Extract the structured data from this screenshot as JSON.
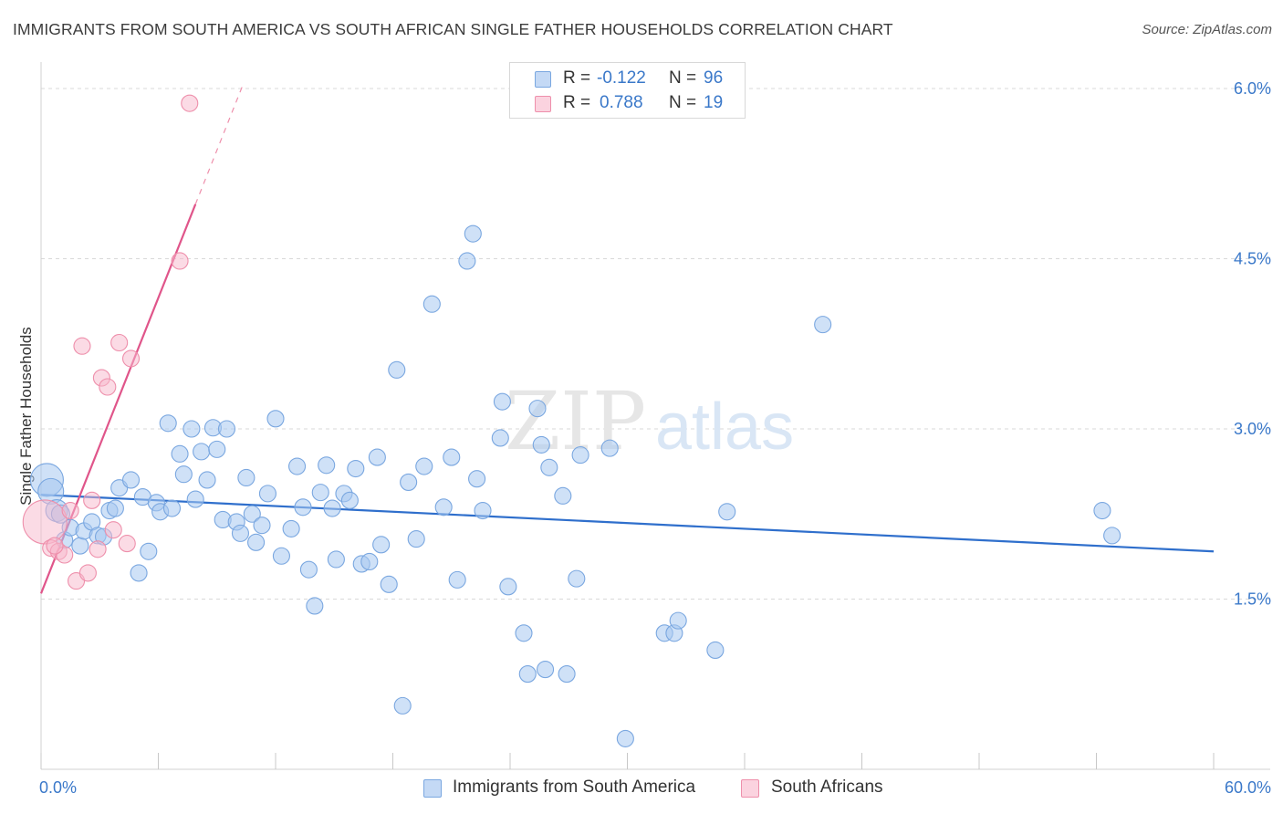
{
  "title": "IMMIGRANTS FROM SOUTH AMERICA VS SOUTH AFRICAN SINGLE FATHER HOUSEHOLDS CORRELATION CHART",
  "source": "Source: ZipAtlas.com",
  "watermark": {
    "zip": "ZIP",
    "atlas": "atlas"
  },
  "legend": {
    "r_label": "R =",
    "n_label": "N =",
    "rows": [
      {
        "r": "-0.122",
        "n": "96"
      },
      {
        "r": "0.788",
        "n": "19"
      }
    ]
  },
  "colors": {
    "blue_fill": "#a8c8f0",
    "blue_edge": "#7aa7e0",
    "blue_line": "#2f6fcc",
    "pink_fill": "#f7b8cb",
    "pink_edge": "#ee8fab",
    "pink_line": "#e0558a",
    "tick_label": "#3a78c9",
    "grid": "#d9d9d9"
  },
  "chart_data": {
    "type": "scatter",
    "title": "IMMIGRANTS FROM SOUTH AMERICA VS SOUTH AFRICAN SINGLE FATHER HOUSEHOLDS CORRELATION CHART",
    "xlabel": "",
    "ylabel": "Single Father Households",
    "xlim": [
      0,
      60
    ],
    "ylim": [
      0,
      6.2
    ],
    "x_tick_labels": [
      "0.0%",
      "60.0%"
    ],
    "y_ticks": [
      1.5,
      3.0,
      4.5,
      6.0
    ],
    "y_tick_labels": [
      "1.5%",
      "3.0%",
      "4.5%",
      "6.0%"
    ],
    "grid": true,
    "legend_position": "bottom",
    "series": [
      {
        "name": "Immigrants from South America",
        "color": "#a8c8f0",
        "trend": {
          "x": [
            0,
            60
          ],
          "y": [
            2.42,
            1.92
          ]
        },
        "points": [
          [
            0.3,
            2.55,
            18
          ],
          [
            0.5,
            2.45,
            14
          ],
          [
            0.8,
            2.28,
            12
          ],
          [
            1.0,
            2.25,
            10
          ],
          [
            1.2,
            2.02,
            9
          ],
          [
            1.5,
            2.13,
            9
          ],
          [
            2.0,
            1.97,
            9
          ],
          [
            2.2,
            2.1,
            9
          ],
          [
            2.6,
            2.18,
            9
          ],
          [
            2.9,
            2.06,
            9
          ],
          [
            3.2,
            2.05,
            9
          ],
          [
            3.5,
            2.28,
            9
          ],
          [
            3.8,
            2.3,
            9
          ],
          [
            4.0,
            2.48,
            9
          ],
          [
            4.6,
            2.55,
            9
          ],
          [
            5.0,
            1.73,
            9
          ],
          [
            5.2,
            2.4,
            9
          ],
          [
            5.5,
            1.92,
            9
          ],
          [
            5.9,
            2.35,
            9
          ],
          [
            6.1,
            2.27,
            9
          ],
          [
            6.5,
            3.05,
            9
          ],
          [
            6.7,
            2.3,
            9
          ],
          [
            7.1,
            2.78,
            9
          ],
          [
            7.3,
            2.6,
            9
          ],
          [
            7.7,
            3.0,
            9
          ],
          [
            7.9,
            2.38,
            9
          ],
          [
            8.2,
            2.8,
            9
          ],
          [
            8.5,
            2.55,
            9
          ],
          [
            8.8,
            3.01,
            9
          ],
          [
            9.0,
            2.82,
            9
          ],
          [
            9.3,
            2.2,
            9
          ],
          [
            9.5,
            3.0,
            9
          ],
          [
            10.0,
            2.18,
            9
          ],
          [
            10.2,
            2.08,
            9
          ],
          [
            10.5,
            2.57,
            9
          ],
          [
            10.8,
            2.25,
            9
          ],
          [
            11.0,
            2.0,
            9
          ],
          [
            11.3,
            2.15,
            9
          ],
          [
            11.6,
            2.43,
            9
          ],
          [
            12.0,
            3.09,
            9
          ],
          [
            12.3,
            1.88,
            9
          ],
          [
            12.8,
            2.12,
            9
          ],
          [
            13.1,
            2.67,
            9
          ],
          [
            13.4,
            2.31,
            9
          ],
          [
            13.7,
            1.76,
            9
          ],
          [
            14.0,
            1.44,
            9
          ],
          [
            14.3,
            2.44,
            9
          ],
          [
            14.6,
            2.68,
            9
          ],
          [
            14.9,
            2.3,
            9
          ],
          [
            15.1,
            1.85,
            9
          ],
          [
            15.5,
            2.43,
            9
          ],
          [
            15.8,
            2.37,
            9
          ],
          [
            16.1,
            2.65,
            9
          ],
          [
            16.4,
            1.81,
            9
          ],
          [
            16.8,
            1.83,
            9
          ],
          [
            17.2,
            2.75,
            9
          ],
          [
            17.4,
            1.98,
            9
          ],
          [
            17.8,
            1.63,
            9
          ],
          [
            18.2,
            3.52,
            9
          ],
          [
            18.5,
            0.56,
            9
          ],
          [
            18.8,
            2.53,
            9
          ],
          [
            19.2,
            2.03,
            9
          ],
          [
            19.6,
            2.67,
            9
          ],
          [
            20.0,
            4.1,
            9
          ],
          [
            20.6,
            2.31,
            9
          ],
          [
            21.0,
            2.75,
            9
          ],
          [
            21.3,
            1.67,
            9
          ],
          [
            21.8,
            4.48,
            9
          ],
          [
            22.1,
            4.72,
            9
          ],
          [
            22.3,
            2.56,
            9
          ],
          [
            22.6,
            2.28,
            9
          ],
          [
            23.5,
            2.92,
            9
          ],
          [
            23.6,
            3.24,
            9
          ],
          [
            23.9,
            1.61,
            9
          ],
          [
            24.7,
            1.2,
            9
          ],
          [
            24.9,
            0.84,
            9
          ],
          [
            25.4,
            3.18,
            9
          ],
          [
            25.6,
            2.86,
            9
          ],
          [
            25.8,
            0.88,
            9
          ],
          [
            26.0,
            2.66,
            9
          ],
          [
            26.7,
            2.41,
            9
          ],
          [
            26.9,
            0.84,
            9
          ],
          [
            27.4,
            1.68,
            9
          ],
          [
            27.6,
            2.77,
            9
          ],
          [
            29.1,
            2.83,
            9
          ],
          [
            29.9,
            0.27,
            9
          ],
          [
            31.9,
            1.2,
            9
          ],
          [
            32.4,
            1.2,
            9
          ],
          [
            32.6,
            1.31,
            9
          ],
          [
            34.5,
            1.05,
            9
          ],
          [
            35.1,
            2.27,
            9
          ],
          [
            40.0,
            3.92,
            9
          ],
          [
            54.3,
            2.28,
            9
          ],
          [
            54.8,
            2.06,
            9
          ]
        ]
      },
      {
        "name": "South Africans",
        "color": "#f7b8cb",
        "trend": {
          "x": [
            0,
            7.9
          ],
          "y": [
            1.55,
            4.98
          ]
        },
        "trend_dashed_extension": {
          "x": [
            7.9,
            10.3
          ],
          "y": [
            4.98,
            6.02
          ]
        },
        "points": [
          [
            0.2,
            2.18,
            24
          ],
          [
            0.5,
            1.95,
            9
          ],
          [
            0.9,
            1.92,
            9
          ],
          [
            1.2,
            1.89,
            9
          ],
          [
            1.5,
            2.28,
            9
          ],
          [
            1.8,
            1.66,
            9
          ],
          [
            2.1,
            3.73,
            9
          ],
          [
            2.4,
            1.73,
            9
          ],
          [
            2.6,
            2.37,
            9
          ],
          [
            2.9,
            1.94,
            9
          ],
          [
            3.1,
            3.45,
            9
          ],
          [
            3.4,
            3.37,
            9
          ],
          [
            3.7,
            2.11,
            9
          ],
          [
            4.0,
            3.76,
            9
          ],
          [
            4.4,
            1.99,
            9
          ],
          [
            4.6,
            3.62,
            9
          ],
          [
            7.1,
            4.48,
            9
          ],
          [
            7.6,
            5.87,
            9
          ],
          [
            0.7,
            1.97,
            9
          ]
        ]
      }
    ]
  },
  "bottom_legend": [
    {
      "label": "Immigrants from South America"
    },
    {
      "label": "South Africans"
    }
  ]
}
